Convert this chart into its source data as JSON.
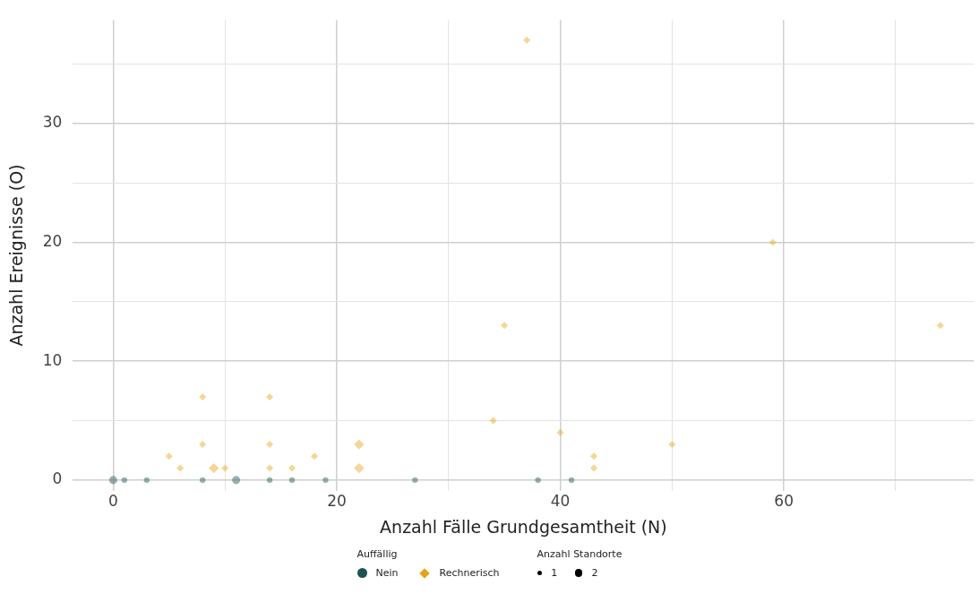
{
  "chart_data": {
    "type": "scatter",
    "xlabel": "Anzahl Fälle Grundgesamtheit (N)",
    "ylabel": "Anzahl Ereignisse (O)",
    "legend_title": "Auffällig",
    "xlim": [
      -3.6,
      77
    ],
    "ylim": [
      -0.9,
      38.7
    ],
    "xticks": [
      0,
      {
        "value": 10,
        "label": null
      },
      20,
      {
        "value": 30,
        "label": null
      },
      40,
      {
        "value": 50,
        "label": null
      },
      60,
      {
        "value": 70,
        "label": null
      }
    ],
    "yticks": [
      0,
      {
        "value": 5,
        "label": null
      },
      10,
      {
        "value": 15,
        "label": null
      },
      20,
      {
        "value": 25,
        "label": null
      },
      30,
      {
        "value": 35,
        "label": null
      }
    ],
    "grid": true,
    "legend": "bottom",
    "annotations": [
      "Anzahl Standorte"
    ],
    "size_legend": [
      1,
      2
    ],
    "series": [
      {
        "name": "Nein",
        "color": "#1d5352",
        "marker": "circle",
        "x": [
          0,
          1,
          3,
          8,
          11,
          14,
          16,
          19,
          27,
          38,
          41
        ],
        "values": [
          0,
          0,
          0,
          0,
          0,
          0,
          0,
          0,
          0,
          0,
          0
        ],
        "sizes": [
          2,
          1,
          1,
          1,
          2,
          1,
          1,
          1,
          1,
          1,
          1
        ]
      },
      {
        "name": "Rechnerisch",
        "color": "#e8a317",
        "marker": "diamond",
        "x": [
          5,
          6,
          8,
          8,
          9,
          10,
          14,
          14,
          14,
          16,
          18,
          22,
          22,
          34,
          35,
          37,
          40,
          43,
          43,
          50,
          59,
          74
        ],
        "values": [
          2,
          1,
          7,
          3,
          1,
          1,
          7,
          3,
          1,
          1,
          2,
          3,
          1,
          5,
          13,
          37,
          4,
          2,
          1,
          3,
          20,
          13
        ],
        "sizes": [
          1,
          1,
          1,
          1,
          2,
          1,
          1,
          1,
          1,
          1,
          1,
          2,
          2,
          1,
          1,
          1,
          1,
          1,
          1,
          1,
          1,
          1
        ]
      }
    ]
  }
}
